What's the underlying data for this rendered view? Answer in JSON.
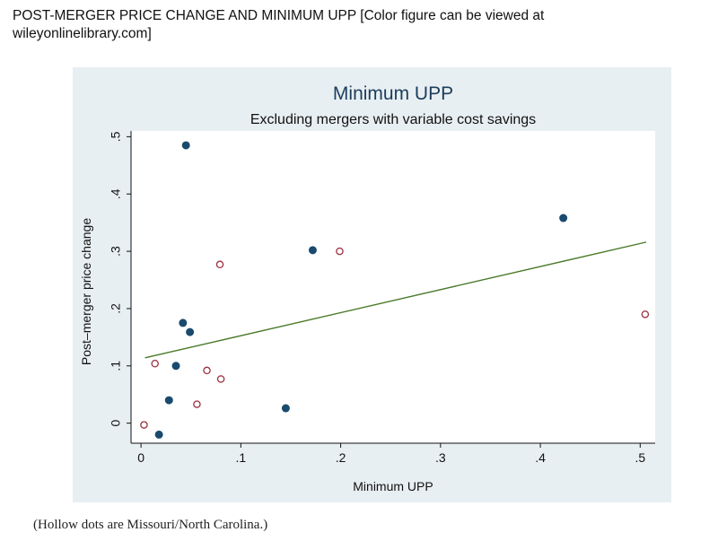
{
  "caption": {
    "title": "POST-MERGER PRICE CHANGE AND MINIMUM UPP  [Color figure can be viewed at wileyonlinelibrary.com]",
    "footnote": "(Hollow dots are Missouri/North Carolina.)"
  },
  "colors": {
    "panel_bg": "#e8eff2",
    "plot_bg": "#ffffff",
    "filled_dot": "#1a4a6e",
    "hollow_dot": "#9c3040",
    "fit_line": "#4a7a2a",
    "title_color": "#1c3d5c"
  },
  "chart_data": {
    "type": "scatter",
    "title": "Minimum UPP",
    "subtitle": "Excluding mergers with variable cost savings",
    "xlabel": "Minimum UPP",
    "ylabel": "Post–merger price change",
    "xlim": [
      -0.01,
      0.515
    ],
    "ylim": [
      -0.035,
      0.51
    ],
    "x_ticks": [
      0,
      0.1,
      0.2,
      0.3,
      0.4,
      0.5
    ],
    "x_tick_labels": [
      "0",
      ".1",
      ".2",
      ".3",
      ".4",
      ".5"
    ],
    "y_ticks": [
      0,
      0.1,
      0.2,
      0.3,
      0.4,
      0.5
    ],
    "y_tick_labels": [
      "0",
      ".1",
      ".2",
      ".3",
      ".4",
      ".5"
    ],
    "grid": false,
    "legend": "none",
    "series": [
      {
        "marker": "filled",
        "points": [
          [
            0.045,
            0.485
          ],
          [
            0.423,
            0.358
          ],
          [
            0.172,
            0.302
          ],
          [
            0.042,
            0.175
          ],
          [
            0.049,
            0.159
          ],
          [
            0.035,
            0.1
          ],
          [
            0.028,
            0.04
          ],
          [
            0.145,
            0.026
          ],
          [
            0.018,
            -0.02
          ]
        ]
      },
      {
        "marker": "hollow",
        "points": [
          [
            0.079,
            0.277
          ],
          [
            0.199,
            0.3
          ],
          [
            0.505,
            0.19
          ],
          [
            0.014,
            0.104
          ],
          [
            0.066,
            0.092
          ],
          [
            0.08,
            0.077
          ],
          [
            0.056,
            0.033
          ],
          [
            0.003,
            -0.003
          ]
        ]
      }
    ],
    "fit_line": {
      "x": [
        0.004,
        0.506
      ],
      "y": [
        0.114,
        0.316
      ]
    }
  }
}
